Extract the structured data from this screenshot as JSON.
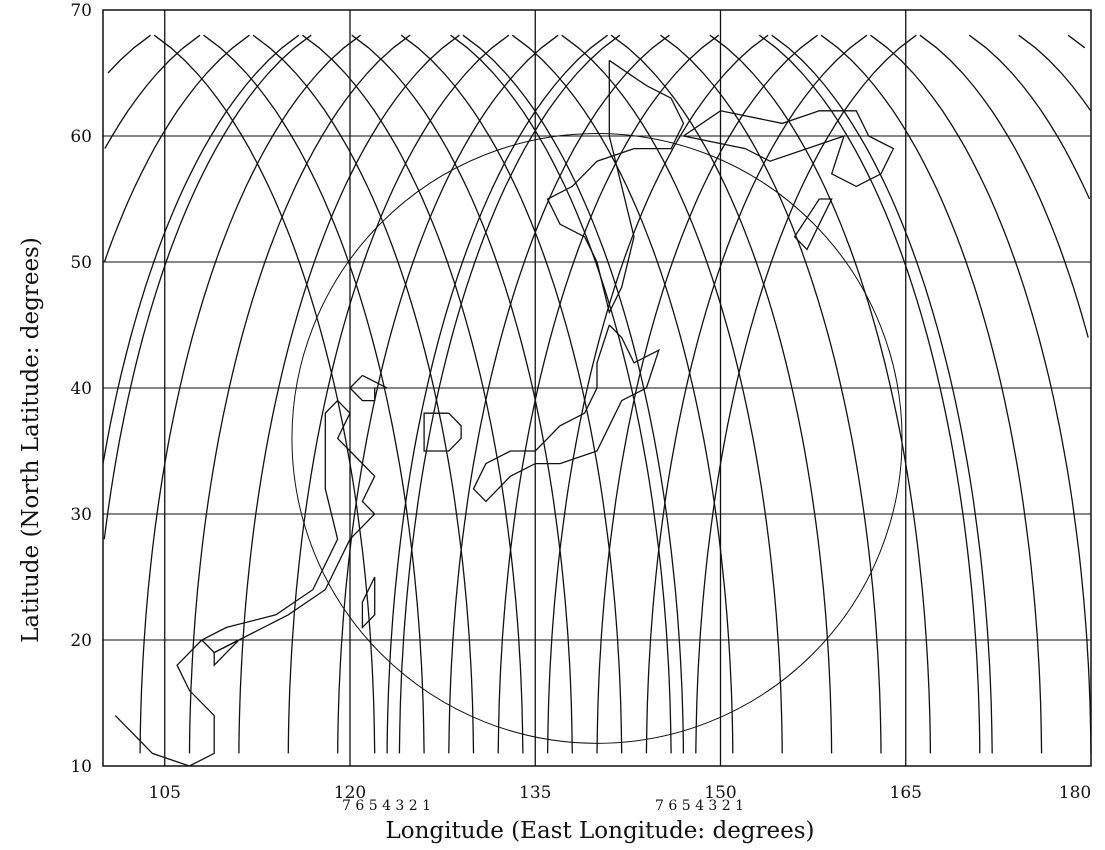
{
  "map": {
    "xlabel": "Longitude (East Longitude: degrees)",
    "ylabel": "Latitude  (North Latitude: degrees)",
    "x_ticks": [
      "105",
      "120",
      "135",
      "150",
      "165",
      "180"
    ],
    "y_ticks": [
      "10",
      "20",
      "30",
      "40",
      "50",
      "60",
      "70"
    ],
    "xlim": [
      100,
      180
    ],
    "ylim": [
      10,
      70
    ],
    "grid": "on",
    "pass_labels_left": [
      "7",
      "6",
      "5",
      "4",
      "3",
      "2",
      "1"
    ],
    "pass_labels_right": [
      "7",
      "6",
      "5",
      "4",
      "3",
      "2",
      "1"
    ],
    "coverage_circle_center": {
      "lon": 140,
      "lat": 36
    },
    "ground_track_crossing_longitudes": [
      110,
      135,
      160
    ]
  }
}
